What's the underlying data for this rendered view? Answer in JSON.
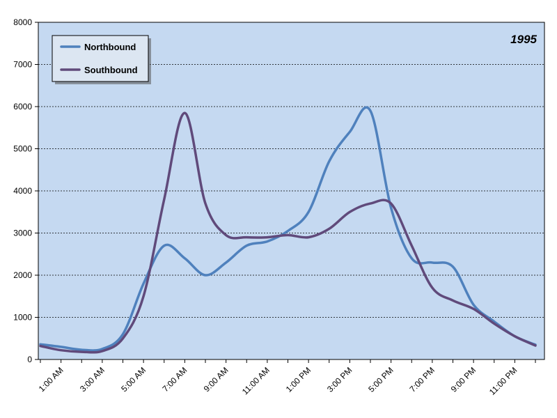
{
  "chart_data": {
    "type": "line",
    "annotation": "1995",
    "xlabel": "",
    "ylabel": "",
    "ylim": [
      0,
      8000
    ],
    "yticks": [
      0,
      1000,
      2000,
      3000,
      4000,
      5000,
      6000,
      7000,
      8000
    ],
    "x": [
      "12:00 AM",
      "1:00 AM",
      "2:00 AM",
      "3:00 AM",
      "4:00 AM",
      "5:00 AM",
      "6:00 AM",
      "7:00 AM",
      "8:00 AM",
      "9:00 AM",
      "10:00 AM",
      "11:00 AM",
      "12:00 PM",
      "1:00 PM",
      "2:00 PM",
      "3:00 PM",
      "4:00 PM",
      "5:00 PM",
      "6:00 PM",
      "7:00 PM",
      "8:00 PM",
      "9:00 PM",
      "10:00 PM",
      "11:00 PM",
      "12:00 AM"
    ],
    "xtick_labels": [
      "1:00 AM",
      "3:00 AM",
      "5:00 AM",
      "7:00 AM",
      "9:00 AM",
      "11:00 AM",
      "1:00 PM",
      "3:00 PM",
      "5:00 PM",
      "7:00 PM",
      "9:00 PM",
      "11:00 PM"
    ],
    "grid": "horizontal dashed",
    "legend_position": "top-left",
    "background": "#c5d9f1",
    "series": [
      {
        "name": "Northbound",
        "color": "#4f81bd",
        "values": [
          360,
          300,
          230,
          250,
          600,
          1800,
          2700,
          2400,
          2000,
          2300,
          2700,
          2800,
          3050,
          3500,
          4700,
          5400,
          5900,
          3600,
          2400,
          2300,
          2200,
          1300,
          900,
          550,
          350
        ]
      },
      {
        "name": "Southbound",
        "color": "#604a7b",
        "values": [
          320,
          220,
          180,
          200,
          500,
          1500,
          3800,
          5850,
          3700,
          2950,
          2900,
          2900,
          2950,
          2900,
          3100,
          3500,
          3700,
          3700,
          2700,
          1700,
          1400,
          1200,
          850,
          550,
          330
        ]
      }
    ]
  }
}
